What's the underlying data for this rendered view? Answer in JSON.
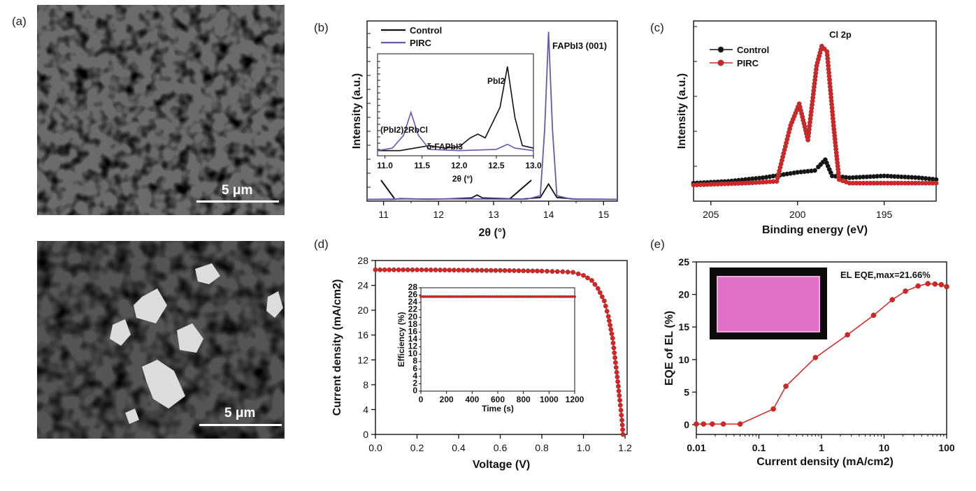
{
  "panels": {
    "a": {
      "letter": "(a)"
    },
    "b": {
      "letter": "(b)"
    },
    "c": {
      "letter": "(c)"
    },
    "d": {
      "letter": "(d)"
    },
    "e": {
      "letter": "(e)"
    }
  },
  "sem": {
    "top": {
      "scale_label": "5 μm"
    },
    "bottom": {
      "scale_label": "5 μm"
    }
  },
  "chart_data": [
    {
      "id": "b",
      "type": "line",
      "xlabel": "2θ (°)",
      "ylabel": "Intensity (a.u.)",
      "xlim": [
        10.7,
        15.25
      ],
      "xticks": [
        "11",
        "12",
        "13",
        "14",
        "15"
      ],
      "legend": [
        "Control",
        "PIRC"
      ],
      "legend_position": "top-left",
      "series": [
        {
          "name": "Control",
          "color": "#111111",
          "x": [
            10.7,
            11.2,
            11.3,
            11.8,
            12.2,
            12.6,
            12.7,
            12.8,
            13.5,
            13.85,
            13.93,
            14.0,
            14.07,
            14.15,
            14.5,
            15.25
          ],
          "y": [
            1,
            1,
            1.4,
            1.1,
            1.3,
            1.8,
            3.4,
            1.8,
            1.1,
            2,
            6,
            9.5,
            6,
            2,
            1.1,
            1
          ]
        },
        {
          "name": "PIRC",
          "color": "#6a55b0",
          "x": [
            10.7,
            11.4,
            12.5,
            13.6,
            13.85,
            13.93,
            14.0,
            14.07,
            14.15,
            14.4,
            15.25
          ],
          "y": [
            1,
            1.2,
            1.2,
            1.1,
            3,
            40,
            94,
            40,
            3,
            1.2,
            1
          ]
        }
      ],
      "annotations": [
        "FAPbI3 (001)"
      ],
      "inset": {
        "xlabel": "2θ (°)",
        "xlim": [
          10.9,
          13.0
        ],
        "xticks": [
          "11.0",
          "11.5",
          "12.0",
          "12.5",
          "13.0"
        ],
        "labels": {
          "pbi2": "PbI2",
          "rbcl": "(PbI2)2RbCl",
          "delta": "δ-FAPbI3"
        },
        "series": [
          {
            "name": "Control",
            "color": "#111111",
            "x": [
              10.9,
              11.2,
              11.4,
              11.6,
              11.8,
              12.0,
              12.15,
              12.25,
              12.35,
              12.55,
              12.65,
              12.75,
              12.85,
              13.0
            ],
            "y": [
              4,
              4,
              6,
              8,
              6,
              7,
              14,
              17,
              14,
              38,
              70,
              30,
              8,
              6
            ]
          },
          {
            "name": "PIRC",
            "color": "#6a55b0",
            "x": [
              10.9,
              11.1,
              11.25,
              11.35,
              11.45,
              11.6,
              12.0,
              12.5,
              12.65,
              12.75,
              13.0
            ],
            "y": [
              4,
              6,
              16,
              34,
              16,
              5,
              4,
              5,
              9,
              6,
              4
            ]
          }
        ]
      }
    },
    {
      "id": "c",
      "type": "line",
      "xlabel": "Binding energy (eV)",
      "ylabel": "Intensity (a.u.)",
      "xlim": [
        206,
        192
      ],
      "xticks": [
        "205",
        "200",
        "195"
      ],
      "legend": [
        "Control",
        "PIRC"
      ],
      "legend_position": "top-left",
      "annotations": [
        "Cl 2p"
      ],
      "series": [
        {
          "name": "Control",
          "color": "#111111",
          "x": [
            206,
            204,
            202,
            200,
            199,
            198.8,
            198.4,
            198,
            197,
            195,
            193,
            192
          ],
          "y": [
            10,
            11,
            13,
            16,
            17,
            19,
            23,
            14,
            13,
            14,
            13,
            12
          ]
        },
        {
          "name": "PIRC",
          "color": "#e02020",
          "x": [
            206,
            203,
            201.2,
            200.4,
            199.9,
            199.4,
            198.9,
            198.6,
            198.3,
            197.9,
            197.6,
            197,
            195,
            193,
            192
          ],
          "y": [
            9,
            10,
            11,
            42,
            54,
            34,
            75,
            86,
            83,
            40,
            12,
            10,
            10,
            10,
            10
          ]
        }
      ]
    },
    {
      "id": "d",
      "type": "line",
      "xlabel": "Voltage (V)",
      "ylabel": "Current density (mA/cm2)",
      "xlim": [
        0,
        1.21
      ],
      "ylim": [
        0,
        28
      ],
      "xticks": [
        "0.0",
        "0.2",
        "0.4",
        "0.6",
        "0.8",
        "1.0",
        "1.2"
      ],
      "yticks": [
        "0",
        "4",
        "8",
        "12",
        "16",
        "20",
        "24",
        "28"
      ],
      "series": [
        {
          "name": "",
          "color": "#e02020",
          "x": [
            0,
            0.2,
            0.4,
            0.6,
            0.8,
            0.9,
            0.95,
            1.0,
            1.04,
            1.07,
            1.1,
            1.12,
            1.14,
            1.16,
            1.175,
            1.185,
            1.19
          ],
          "y": [
            26.5,
            26.5,
            26.45,
            26.4,
            26.3,
            26.2,
            26.1,
            25.6,
            24.8,
            23.5,
            21.5,
            19,
            15.5,
            10,
            5.5,
            2.3,
            0
          ]
        }
      ],
      "inset": {
        "xlabel": "Time (s)",
        "ylabel": "Efficiency (%)",
        "xlim": [
          0,
          1200
        ],
        "ylim": [
          0,
          28
        ],
        "xticks": [
          "0",
          "200",
          "400",
          "600",
          "800",
          "1000",
          "1200"
        ],
        "yticks": [
          "0",
          "2",
          "4",
          "6",
          "8",
          "10",
          "12",
          "14",
          "16",
          "18",
          "20",
          "22",
          "24",
          "26",
          "28"
        ],
        "series": [
          {
            "name": "",
            "color": "#e02020",
            "x": [
              0,
              1200
            ],
            "y": [
              25.6,
              25.6
            ]
          }
        ]
      }
    },
    {
      "id": "e",
      "type": "line",
      "xlabel": "Current density (mA/cm2)",
      "ylabel": "EQE of EL (%)",
      "xscale": "log",
      "xlim": [
        0.01,
        100
      ],
      "ylim": [
        -1.5,
        25
      ],
      "xticks": [
        "0.01",
        "0.1",
        "1",
        "10",
        "100"
      ],
      "yticks": [
        "0",
        "5",
        "10",
        "15",
        "20",
        "25"
      ],
      "annotations": [
        "EL EQE,max=21.66%"
      ],
      "series": [
        {
          "name": "",
          "color": "#e02020",
          "x": [
            0.01,
            0.013,
            0.018,
            0.027,
            0.05,
            0.17,
            0.27,
            0.8,
            2.6,
            6.8,
            13.5,
            22,
            35,
            50,
            65,
            82,
            100
          ],
          "y": [
            0.1,
            0.1,
            0.1,
            0.1,
            0.1,
            2.4,
            5.9,
            10.3,
            13.8,
            16.8,
            19.2,
            20.5,
            21.3,
            21.66,
            21.6,
            21.5,
            21.2
          ]
        }
      ]
    }
  ]
}
